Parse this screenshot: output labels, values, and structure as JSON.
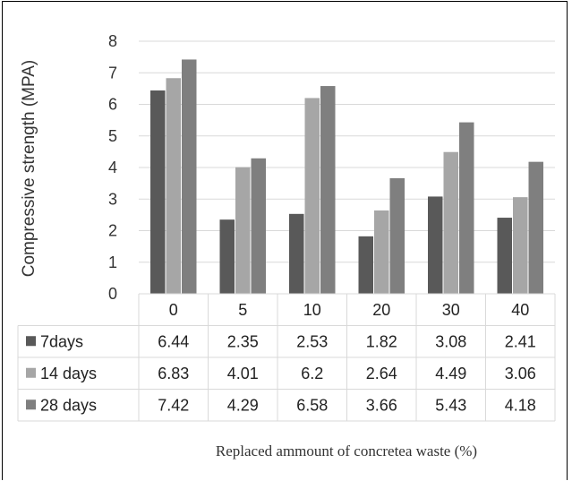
{
  "chart_data": {
    "type": "bar",
    "title": "",
    "ylabel": "Compressive strength (MPA)",
    "xlabel": "Replaced ammount of concretea waste (%)",
    "ylim": [
      0,
      8
    ],
    "yticks": [
      "0",
      "1",
      "2",
      "3",
      "4",
      "5",
      "6",
      "7",
      "8"
    ],
    "categories": [
      "0",
      "5",
      "10",
      "20",
      "30",
      "40"
    ],
    "grid": true,
    "legend": "data-table",
    "series": [
      {
        "name": "7days",
        "color": "#595959",
        "values": [
          6.44,
          2.35,
          2.53,
          1.82,
          3.08,
          2.41
        ],
        "labels": [
          "6.44",
          "2.35",
          "2.53",
          "1.82",
          "3.08",
          "2.41"
        ]
      },
      {
        "name": "14 days",
        "color": "#a6a6a6",
        "values": [
          6.83,
          4.01,
          6.2,
          2.64,
          4.49,
          3.06
        ],
        "labels": [
          "6.83",
          "4.01",
          "6.2",
          "2.64",
          "4.49",
          "3.06"
        ]
      },
      {
        "name": "28 days",
        "color": "#7f7f7f",
        "values": [
          7.42,
          4.29,
          6.58,
          3.66,
          5.43,
          4.18
        ],
        "labels": [
          "7.42",
          "4.29",
          "6.58",
          "3.66",
          "5.43",
          "4.18"
        ]
      }
    ]
  }
}
